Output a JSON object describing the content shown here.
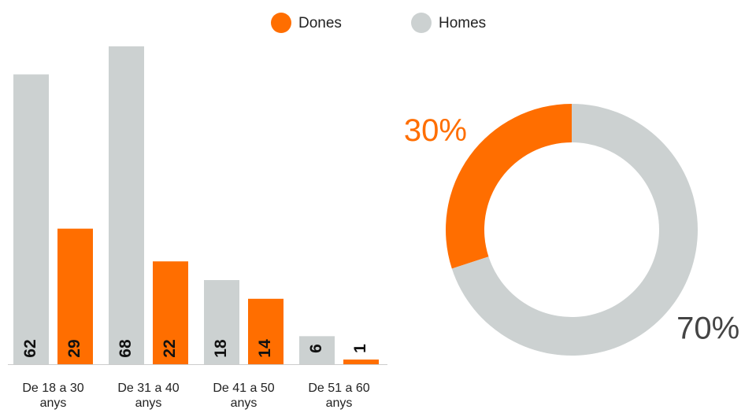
{
  "chart_data": [
    {
      "type": "bar",
      "categories": [
        "De 18 a 30 anys",
        "De 31 a 40 anys",
        "De 41 a 50 anys",
        "De 51 a 60 anys"
      ],
      "series": [
        {
          "name": "Dones",
          "color": "#ff6e00",
          "values": [
            29,
            22,
            14,
            1
          ]
        },
        {
          "name": "Homes",
          "color": "#ccd1d1",
          "values": [
            62,
            68,
            18,
            6
          ]
        }
      ],
      "ylim": [
        0,
        70
      ]
    },
    {
      "type": "pie",
      "values": [
        30,
        70
      ],
      "value_labels": [
        "30%",
        "70%"
      ],
      "colors": [
        "#ff6e00",
        "#ccd1d1"
      ],
      "label_colors": [
        "#ff6e00",
        "#444444"
      ]
    }
  ]
}
